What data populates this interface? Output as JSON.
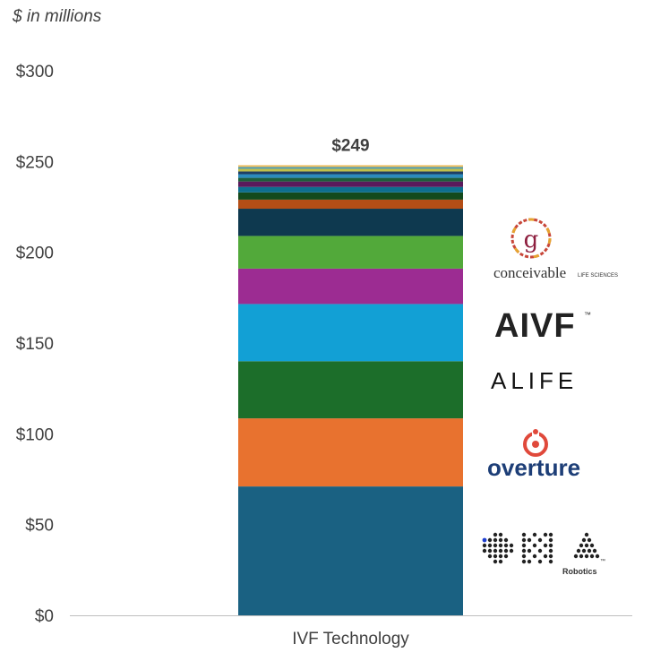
{
  "unit_label": "$ in millions",
  "chart_data": {
    "type": "bar",
    "stacked": true,
    "categories": [
      "IVF Technology"
    ],
    "yticks": [
      "$0",
      "$50",
      "$100",
      "$150",
      "$200",
      "$250",
      "$300"
    ],
    "ylim": [
      0,
      300
    ],
    "total_label": "$249",
    "total": 249,
    "series": [
      {
        "values": [
          71
        ],
        "color": "#1a6182"
      },
      {
        "values": [
          37.5
        ],
        "color": "#e8722f"
      },
      {
        "values": [
          31.5
        ],
        "color": "#1c6e2a"
      },
      {
        "values": [
          31.5
        ],
        "color": "#12a0d5"
      },
      {
        "values": [
          19.5
        ],
        "color": "#9c2c92"
      },
      {
        "values": [
          18
        ],
        "color": "#52a93a"
      },
      {
        "values": [
          15
        ],
        "color": "#0e394f"
      },
      {
        "values": [
          5
        ],
        "color": "#b44e16"
      },
      {
        "values": [
          4
        ],
        "color": "#134a1c"
      },
      {
        "values": [
          3
        ],
        "color": "#0d6f8f"
      },
      {
        "values": [
          3
        ],
        "color": "#5a1a5c"
      },
      {
        "values": [
          2
        ],
        "color": "#1e5e3b"
      },
      {
        "values": [
          2
        ],
        "color": "#2b8bbd"
      },
      {
        "values": [
          1.5
        ],
        "color": "#1f3f63"
      },
      {
        "values": [
          1.5
        ],
        "color": "#c0c04a"
      },
      {
        "values": [
          1
        ],
        "color": "#4a9ab2"
      },
      {
        "values": [
          1
        ],
        "color": "#f0c060"
      }
    ],
    "grid": false,
    "legend": "none"
  },
  "logos": [
    {
      "name": "Conceivable Life Sciences",
      "text": "conceivable",
      "sub": "LIFE SCIENCES"
    },
    {
      "name": "AIVF",
      "text": "AIVF",
      "tm": "™"
    },
    {
      "name": "ALIFE",
      "text": "ALIFE"
    },
    {
      "name": "Overture",
      "text": "overture"
    },
    {
      "name": "OMA Robotics",
      "sub": "Robotics",
      "tm": "™"
    }
  ],
  "colors": {
    "text": "#404040",
    "axis": "#bfbfbf"
  }
}
